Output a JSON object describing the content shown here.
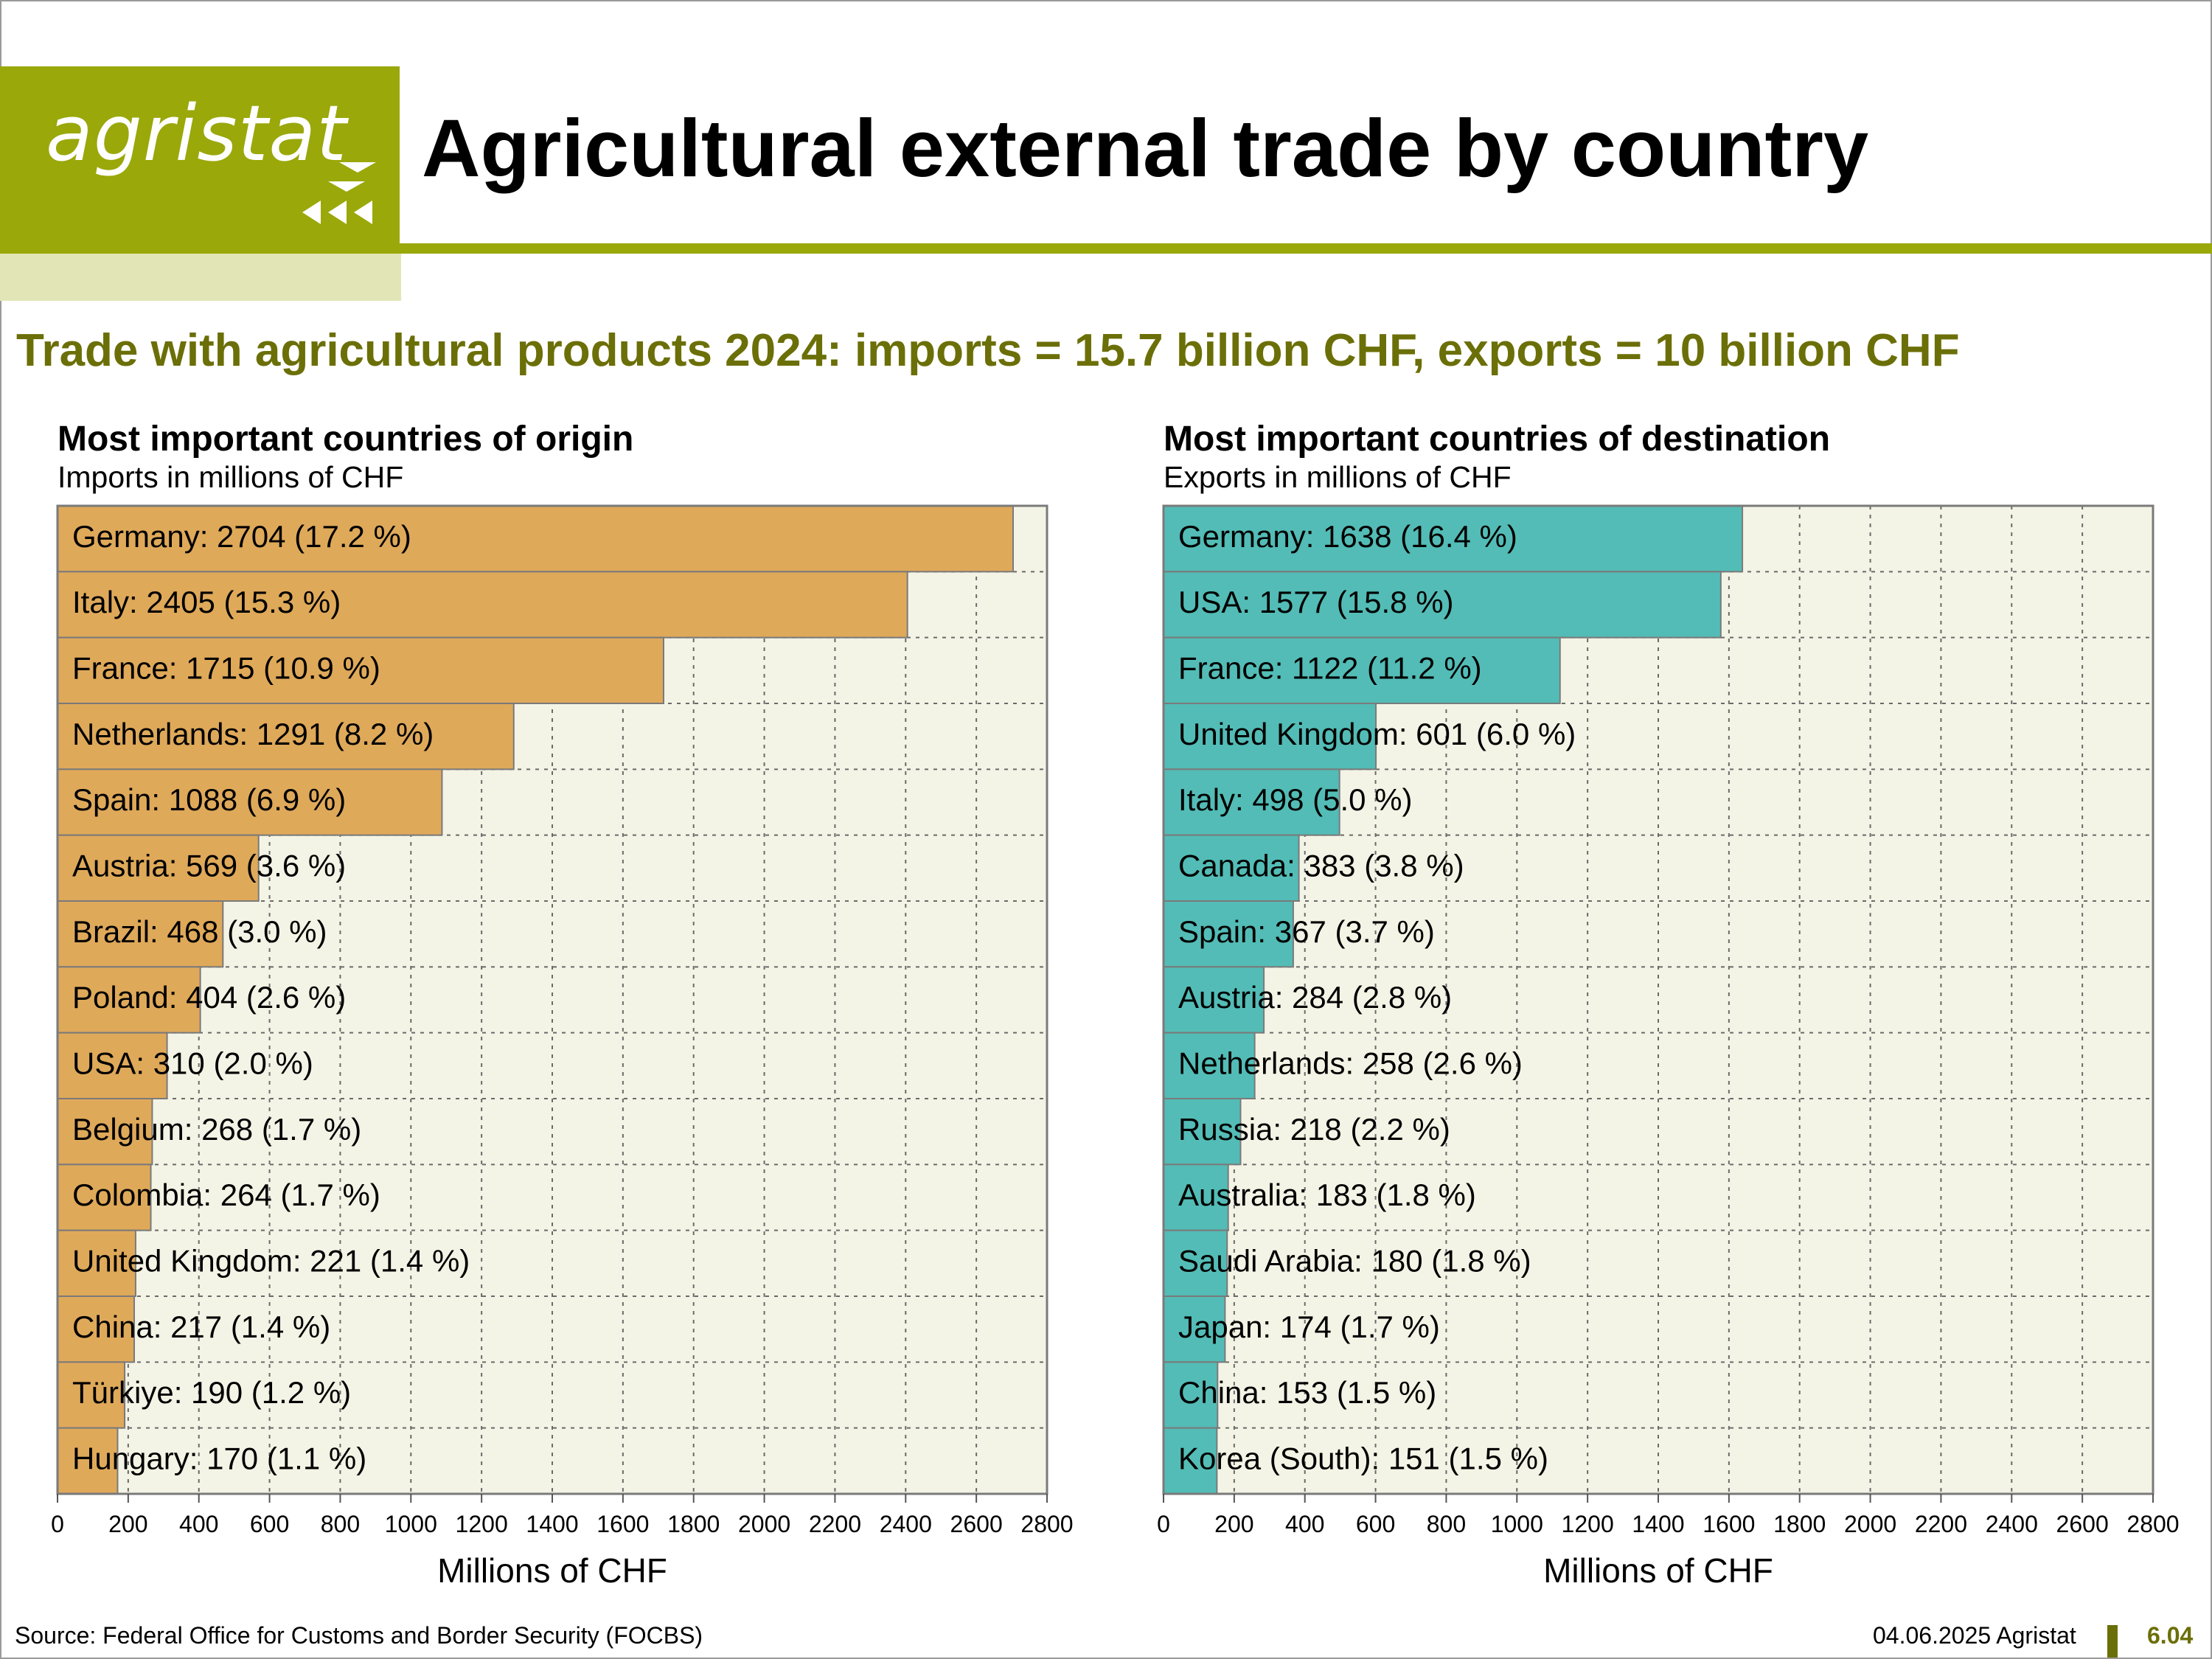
{
  "header": {
    "logo_text": "agristat",
    "title": "Agricultural external trade by country",
    "brand_color": "#9aa80a"
  },
  "subtitle": "Trade with agricultural products 2024: imports = 15.7 billion CHF, exports = 10 billion CHF",
  "footer": {
    "source": "Source: Federal Office for Customs and Border Security (FOCBS)",
    "date_org": "04.06.2025 Agristat",
    "page": "6.04"
  },
  "chart_data": [
    {
      "type": "bar",
      "orientation": "horizontal",
      "title": "Most important countries of origin",
      "subtitle": "Imports in millions of CHF",
      "xlabel": "Millions of CHF",
      "xlim": [
        0,
        2800
      ],
      "xticks": [
        0,
        200,
        400,
        600,
        800,
        1000,
        1200,
        1400,
        1600,
        1800,
        2000,
        2200,
        2400,
        2600,
        2800
      ],
      "grid": true,
      "bar_color": "#dfa95a",
      "plot_background": "#f4f4e6",
      "categories": [
        "Germany",
        "Italy",
        "France",
        "Netherlands",
        "Spain",
        "Austria",
        "Brazil",
        "Poland",
        "USA",
        "Belgium",
        "Colombia",
        "United Kingdom",
        "China",
        "Türkiye",
        "Hungary"
      ],
      "values": [
        2704,
        2405,
        1715,
        1291,
        1088,
        569,
        468,
        404,
        310,
        268,
        264,
        221,
        217,
        190,
        170
      ],
      "labels": [
        "Germany: 2704 (17.2 %)",
        "Italy: 2405 (15.3 %)",
        "France: 1715 (10.9 %)",
        "Netherlands: 1291 (8.2 %)",
        "Spain: 1088 (6.9 %)",
        "Austria: 569 (3.6 %)",
        "Brazil: 468 (3.0 %)",
        "Poland: 404 (2.6 %)",
        "USA: 310 (2.0 %)",
        "Belgium: 268 (1.7 %)",
        "Colombia: 264 (1.7 %)",
        "United Kingdom: 221 (1.4 %)",
        "China: 217 (1.4 %)",
        "Türkiye: 190 (1.2 %)",
        "Hungary: 170 (1.1 %)"
      ]
    },
    {
      "type": "bar",
      "orientation": "horizontal",
      "title": "Most important countries of destination",
      "subtitle": "Exports in millions of CHF",
      "xlabel": "Millions of CHF",
      "xlim": [
        0,
        2800
      ],
      "xticks": [
        0,
        200,
        400,
        600,
        800,
        1000,
        1200,
        1400,
        1600,
        1800,
        2000,
        2200,
        2400,
        2600,
        2800
      ],
      "grid": true,
      "bar_color": "#53bcb6",
      "plot_background": "#f4f4e6",
      "categories": [
        "Germany",
        "USA",
        "France",
        "United Kingdom",
        "Italy",
        "Canada",
        "Spain",
        "Austria",
        "Netherlands",
        "Russia",
        "Australia",
        "Saudi Arabia",
        "Japan",
        "China",
        "Korea (South)"
      ],
      "values": [
        1638,
        1577,
        1122,
        601,
        498,
        383,
        367,
        284,
        258,
        218,
        183,
        180,
        174,
        153,
        151
      ],
      "labels": [
        "Germany: 1638 (16.4 %)",
        "USA: 1577 (15.8 %)",
        "France: 1122 (11.2 %)",
        "United Kingdom: 601 (6.0 %)",
        "Italy: 498 (5.0 %)",
        "Canada: 383 (3.8 %)",
        "Spain: 367 (3.7 %)",
        "Austria: 284 (2.8 %)",
        "Netherlands: 258 (2.6 %)",
        "Russia: 218 (2.2 %)",
        "Australia: 183 (1.8 %)",
        "Saudi Arabia: 180 (1.8 %)",
        "Japan: 174 (1.7 %)",
        "China: 153 (1.5 %)",
        "Korea (South): 151 (1.5 %)"
      ]
    }
  ]
}
